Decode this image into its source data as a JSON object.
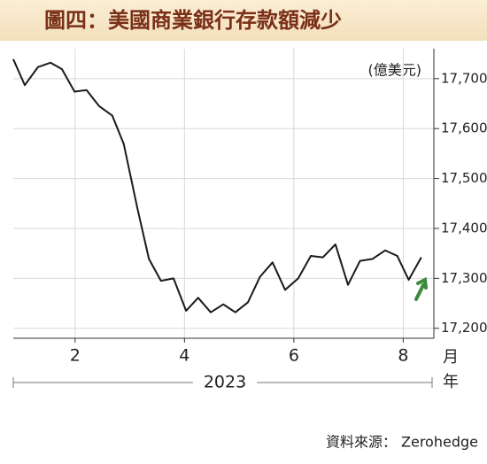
{
  "chart_data": {
    "type": "line",
    "title": "圖四：美國商業銀行存款額減少",
    "unit_label": "(億美元)",
    "x_unit": "月",
    "year_unit": "年",
    "year": "2023",
    "source": "資料來源： Zerohedge",
    "x": [
      0.87,
      1.08,
      1.32,
      1.55,
      1.76,
      1.99,
      2.21,
      2.44,
      2.68,
      2.89,
      3.14,
      3.35,
      3.57,
      3.8,
      4.03,
      4.25,
      4.48,
      4.71,
      4.93,
      5.16,
      5.38,
      5.61,
      5.84,
      6.08,
      6.31,
      6.53,
      6.76,
      6.99,
      7.21,
      7.44,
      7.67,
      7.89,
      8.1,
      8.33
    ],
    "series": [
      {
        "color": "#1a1a1a",
        "values": [
          17739,
          17687,
          17723,
          17732,
          17719,
          17674,
          17677,
          17645,
          17626,
          17569,
          17440,
          17339,
          17295,
          17300,
          17235,
          17261,
          17232,
          17248,
          17232,
          17252,
          17303,
          17332,
          17277,
          17300,
          17345,
          17342,
          17368,
          17287,
          17335,
          17339,
          17356,
          17345,
          17297,
          17342
        ]
      }
    ],
    "xlim": [
      0.87,
      8.56
    ],
    "xticks": [
      2,
      4,
      6,
      8
    ],
    "ylim": [
      17180,
      17760
    ],
    "yticks": [
      {
        "value": 17200,
        "label": "17,200"
      },
      {
        "value": 17300,
        "label": "17,300"
      },
      {
        "value": 17400,
        "label": "17,400"
      },
      {
        "value": 17500,
        "label": "17,500"
      },
      {
        "value": 17600,
        "label": "17,600"
      },
      {
        "value": 17700,
        "label": "17,700"
      }
    ],
    "grid": true
  }
}
